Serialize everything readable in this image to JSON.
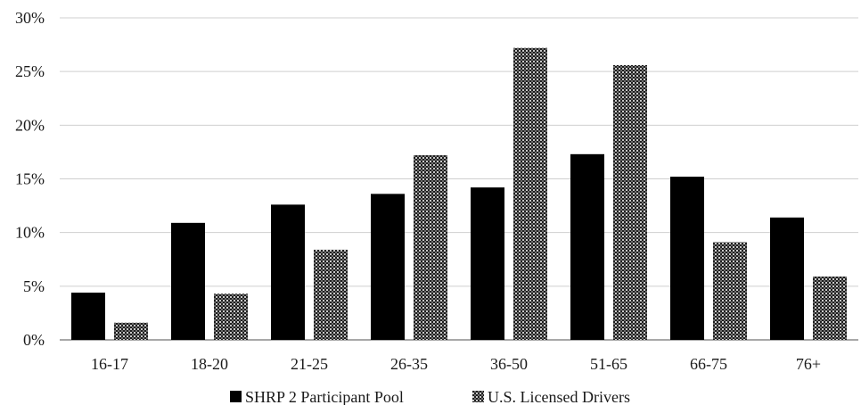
{
  "chart_data": {
    "type": "bar",
    "title": "",
    "xlabel": "",
    "ylabel": "",
    "categories": [
      "16-17",
      "18-20",
      "21-25",
      "26-35",
      "36-50",
      "51-65",
      "66-75",
      "76+"
    ],
    "series": [
      {
        "name": "SHRP 2 Participant Pool",
        "values": [
          4.4,
          10.9,
          12.6,
          13.6,
          14.2,
          17.3,
          15.2,
          11.4
        ],
        "color": "#000000",
        "pattern": "solid"
      },
      {
        "name": "U.S. Licensed Drivers",
        "values": [
          1.6,
          4.3,
          8.4,
          17.2,
          27.2,
          25.6,
          9.1,
          5.9
        ],
        "color": "#4a4a4a",
        "pattern": "checkered"
      }
    ],
    "ylim": [
      0,
      30
    ],
    "yticks": [
      0,
      5,
      10,
      15,
      20,
      25,
      30
    ],
    "ytick_labels": [
      "0%",
      "5%",
      "10%",
      "15%",
      "20%",
      "25%",
      "30%"
    ],
    "grid": true,
    "legend_position": "bottom"
  }
}
